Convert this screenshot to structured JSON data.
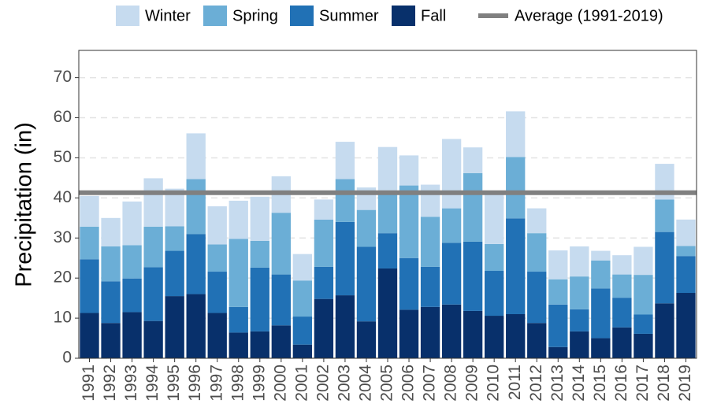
{
  "chart_data": {
    "type": "stacked_bar",
    "y_label": "Precipitation (in)",
    "categories": [
      "1991",
      "1992",
      "1993",
      "1994",
      "1995",
      "1996",
      "1997",
      "1998",
      "1999",
      "2000",
      "2001",
      "2002",
      "2003",
      "2004",
      "2005",
      "2006",
      "2007",
      "2008",
      "2009",
      "2010",
      "2011",
      "2012",
      "2013",
      "2014",
      "2015",
      "2016",
      "2017",
      "2018",
      "2019"
    ],
    "series": [
      {
        "name": "Winter",
        "color": "#c6dbef",
        "values": [
          7.7,
          7.1,
          10.9,
          12.1,
          9.4,
          11.4,
          9.5,
          9.5,
          11.0,
          9.1,
          6.6,
          5.0,
          9.3,
          5.6,
          11.7,
          7.5,
          8.0,
          17.3,
          6.4,
          12.3,
          11.4,
          6.2,
          7.2,
          7.5,
          2.4,
          4.8,
          7.0,
          8.9,
          6.6
        ]
      },
      {
        "name": "Spring",
        "color": "#6baed6",
        "values": [
          8.1,
          8.7,
          8.3,
          10.1,
          6.1,
          13.7,
          6.8,
          17.0,
          6.7,
          15.4,
          9.0,
          11.8,
          10.7,
          9.2,
          9.8,
          18.1,
          12.5,
          8.6,
          17.1,
          6.7,
          15.3,
          9.6,
          6.3,
          8.2,
          7.0,
          5.8,
          9.9,
          8.1,
          2.5
        ]
      },
      {
        "name": "Summer",
        "color": "#2171b5",
        "values": [
          13.4,
          10.4,
          8.4,
          13.4,
          11.3,
          15.0,
          10.3,
          6.4,
          15.9,
          12.7,
          7.0,
          8.0,
          18.3,
          18.6,
          8.8,
          12.9,
          10.0,
          15.4,
          17.3,
          11.2,
          23.9,
          12.8,
          10.6,
          5.5,
          12.4,
          7.4,
          4.8,
          17.8,
          9.2
        ]
      },
      {
        "name": "Fall",
        "color": "#08306b",
        "values": [
          11.3,
          8.8,
          11.5,
          9.3,
          15.5,
          16.0,
          11.3,
          6.4,
          6.7,
          8.2,
          3.4,
          14.8,
          15.7,
          9.2,
          22.4,
          12.1,
          12.8,
          13.4,
          11.8,
          10.6,
          11.0,
          8.8,
          2.8,
          6.7,
          5.0,
          7.7,
          6.1,
          13.7,
          16.3
        ]
      }
    ],
    "average": {
      "name": "Average (1991-2019)",
      "value": 41.3,
      "color": "#808080"
    },
    "ylim": [
      0,
      76.8
    ],
    "yticks": [
      0,
      10,
      20,
      30,
      40,
      50,
      60,
      70
    ],
    "grid": true,
    "legend": "top"
  }
}
